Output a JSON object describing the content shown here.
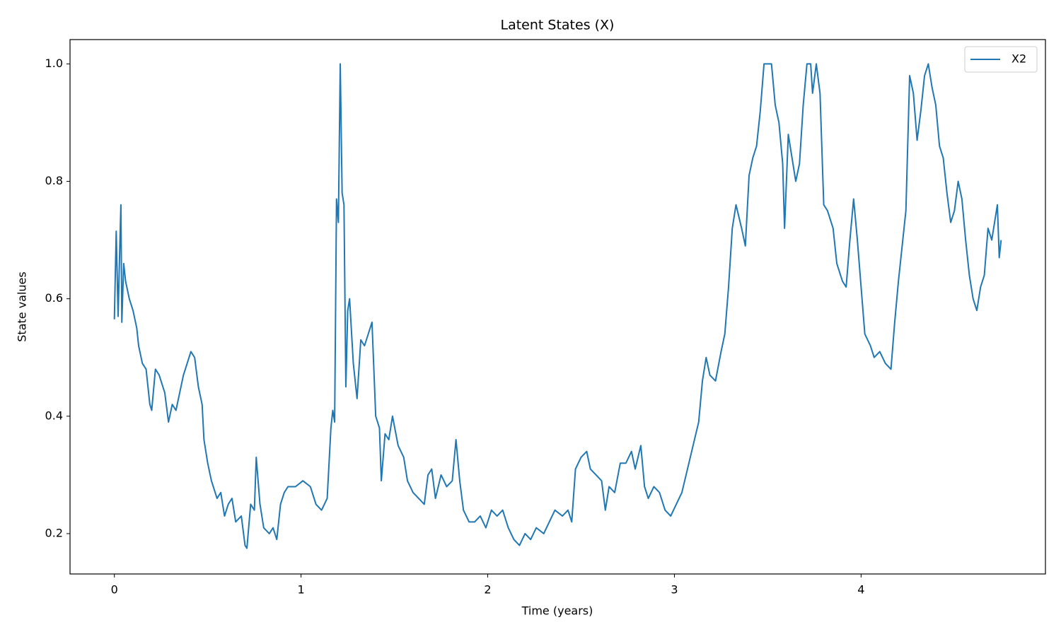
{
  "chart_data": {
    "type": "line",
    "title": "Latent States (X)",
    "xlabel": "Time (years)",
    "ylabel": "State values",
    "x": [
      0.0,
      0.01,
      0.02,
      0.03,
      0.035,
      0.04,
      0.05,
      0.06,
      0.08,
      0.1,
      0.12,
      0.13,
      0.15,
      0.17,
      0.19,
      0.2,
      0.22,
      0.24,
      0.27,
      0.29,
      0.31,
      0.33,
      0.35,
      0.37,
      0.39,
      0.41,
      0.43,
      0.45,
      0.47,
      0.48,
      0.5,
      0.52,
      0.55,
      0.57,
      0.59,
      0.61,
      0.63,
      0.65,
      0.68,
      0.7,
      0.71,
      0.73,
      0.75,
      0.76,
      0.78,
      0.8,
      0.83,
      0.85,
      0.87,
      0.89,
      0.91,
      0.93,
      0.97,
      1.01,
      1.05,
      1.08,
      1.11,
      1.14,
      1.16,
      1.17,
      1.18,
      1.19,
      1.2,
      1.21,
      1.22,
      1.23,
      1.24,
      1.25,
      1.26,
      1.28,
      1.3,
      1.32,
      1.34,
      1.36,
      1.38,
      1.4,
      1.42,
      1.43,
      1.45,
      1.47,
      1.49,
      1.52,
      1.55,
      1.57,
      1.6,
      1.63,
      1.66,
      1.68,
      1.7,
      1.72,
      1.75,
      1.78,
      1.81,
      1.83,
      1.85,
      1.87,
      1.9,
      1.93,
      1.96,
      1.99,
      2.02,
      2.05,
      2.08,
      2.11,
      2.14,
      2.17,
      2.2,
      2.23,
      2.26,
      2.3,
      2.33,
      2.36,
      2.4,
      2.43,
      2.45,
      2.47,
      2.5,
      2.53,
      2.55,
      2.58,
      2.61,
      2.63,
      2.65,
      2.68,
      2.71,
      2.74,
      2.77,
      2.79,
      2.82,
      2.84,
      2.86,
      2.89,
      2.92,
      2.95,
      2.98,
      3.01,
      3.04,
      3.07,
      3.1,
      3.13,
      3.15,
      3.17,
      3.19,
      3.22,
      3.25,
      3.27,
      3.29,
      3.31,
      3.33,
      3.36,
      3.38,
      3.4,
      3.42,
      3.44,
      3.46,
      3.48,
      3.5,
      3.52,
      3.54,
      3.56,
      3.58,
      3.59,
      3.61,
      3.63,
      3.65,
      3.67,
      3.69,
      3.71,
      3.73,
      3.74,
      3.76,
      3.78,
      3.8,
      3.82,
      3.85,
      3.87,
      3.9,
      3.92,
      3.94,
      3.96,
      3.98,
      4.0,
      4.02,
      4.05,
      4.07,
      4.1,
      4.13,
      4.16,
      4.18,
      4.2,
      4.22,
      4.24,
      4.26,
      4.28,
      4.3,
      4.32,
      4.34,
      4.36,
      4.38,
      4.4,
      4.42,
      4.44,
      4.46,
      4.48,
      4.5,
      4.52,
      4.54,
      4.56,
      4.58,
      4.6,
      4.62,
      4.64,
      4.66,
      4.68,
      4.7,
      4.72,
      4.73,
      4.74,
      4.75
    ],
    "series": [
      {
        "name": "X2",
        "color": "#1f77b4",
        "values": [
          0.565,
          0.715,
          0.57,
          0.7,
          0.76,
          0.56,
          0.66,
          0.63,
          0.6,
          0.58,
          0.55,
          0.52,
          0.49,
          0.48,
          0.42,
          0.41,
          0.48,
          0.47,
          0.44,
          0.39,
          0.42,
          0.41,
          0.44,
          0.47,
          0.49,
          0.51,
          0.5,
          0.45,
          0.42,
          0.36,
          0.32,
          0.29,
          0.26,
          0.27,
          0.23,
          0.25,
          0.26,
          0.22,
          0.23,
          0.18,
          0.175,
          0.25,
          0.24,
          0.33,
          0.25,
          0.21,
          0.2,
          0.21,
          0.19,
          0.25,
          0.27,
          0.28,
          0.28,
          0.29,
          0.28,
          0.25,
          0.24,
          0.26,
          0.38,
          0.41,
          0.39,
          0.77,
          0.73,
          1.0,
          0.78,
          0.76,
          0.45,
          0.58,
          0.6,
          0.49,
          0.43,
          0.53,
          0.52,
          0.54,
          0.56,
          0.4,
          0.38,
          0.29,
          0.37,
          0.36,
          0.4,
          0.35,
          0.33,
          0.29,
          0.27,
          0.26,
          0.25,
          0.3,
          0.31,
          0.26,
          0.3,
          0.28,
          0.29,
          0.36,
          0.29,
          0.24,
          0.22,
          0.22,
          0.23,
          0.21,
          0.24,
          0.23,
          0.24,
          0.21,
          0.19,
          0.18,
          0.2,
          0.19,
          0.21,
          0.2,
          0.22,
          0.24,
          0.23,
          0.24,
          0.22,
          0.31,
          0.33,
          0.34,
          0.31,
          0.3,
          0.29,
          0.24,
          0.28,
          0.27,
          0.32,
          0.32,
          0.34,
          0.31,
          0.35,
          0.28,
          0.26,
          0.28,
          0.27,
          0.24,
          0.23,
          0.25,
          0.27,
          0.31,
          0.35,
          0.39,
          0.46,
          0.5,
          0.47,
          0.46,
          0.51,
          0.54,
          0.62,
          0.72,
          0.76,
          0.72,
          0.69,
          0.81,
          0.84,
          0.86,
          0.92,
          1.0,
          1.0,
          1.0,
          0.93,
          0.9,
          0.83,
          0.72,
          0.88,
          0.84,
          0.8,
          0.83,
          0.93,
          1.0,
          1.0,
          0.95,
          1.0,
          0.95,
          0.76,
          0.75,
          0.72,
          0.66,
          0.63,
          0.62,
          0.7,
          0.77,
          0.7,
          0.62,
          0.54,
          0.52,
          0.5,
          0.51,
          0.49,
          0.48,
          0.56,
          0.63,
          0.69,
          0.75,
          0.98,
          0.95,
          0.87,
          0.92,
          0.98,
          1.0,
          0.96,
          0.93,
          0.86,
          0.84,
          0.78,
          0.73,
          0.75,
          0.8,
          0.77,
          0.7,
          0.64,
          0.6,
          0.58,
          0.62,
          0.64,
          0.72,
          0.7,
          0.74,
          0.76,
          0.67,
          0.7
        ]
      }
    ],
    "xlim": [
      -0.2375,
      4.9875
    ],
    "xticks": [
      0,
      1,
      2,
      3,
      4
    ],
    "ylim": [
      0.1313,
      1.0414
    ],
    "yticks": [
      0.2,
      0.4,
      0.6,
      0.8,
      {
        "value": 1,
        "label": "1.0"
      }
    ],
    "legend": "upper right"
  }
}
